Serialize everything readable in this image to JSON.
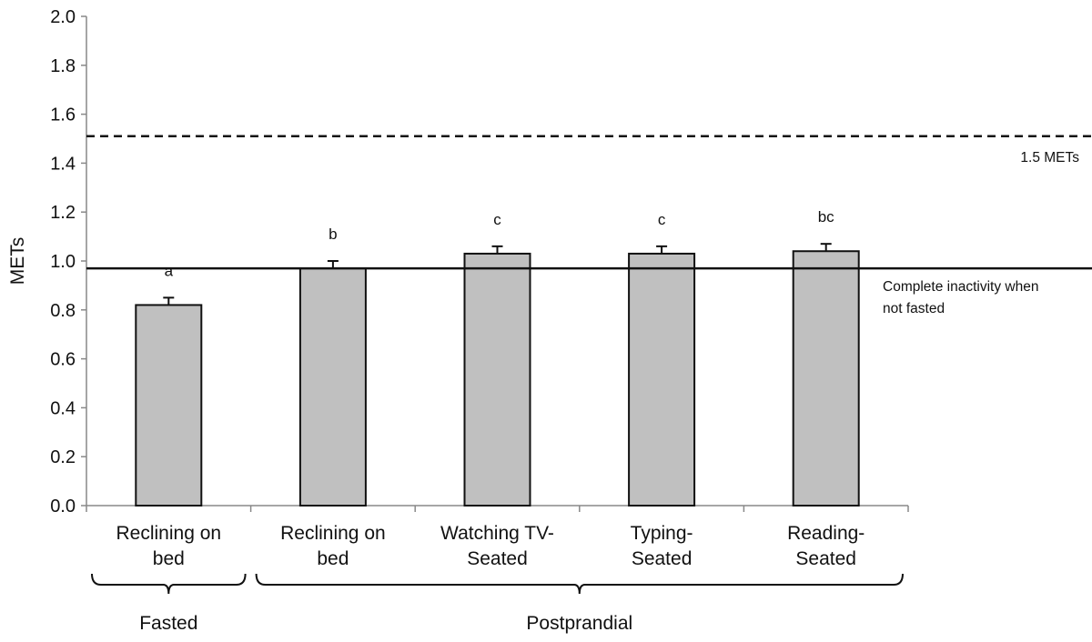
{
  "chart_data": {
    "type": "bar",
    "title": "",
    "xlabel": "",
    "ylabel": "METs",
    "ylim": [
      0,
      2.0
    ],
    "yticks": [
      "0.0",
      "0.2",
      "0.4",
      "0.6",
      "0.8",
      "1.0",
      "1.2",
      "1.4",
      "1.6",
      "1.8",
      "2.0"
    ],
    "categories": [
      [
        "Reclining on",
        "bed"
      ],
      [
        "Reclining on",
        "bed"
      ],
      [
        "Watching TV-",
        "Seated"
      ],
      [
        "Typing-",
        "Seated"
      ],
      [
        "Reading-",
        "Seated"
      ]
    ],
    "values": [
      0.82,
      0.97,
      1.03,
      1.03,
      1.04
    ],
    "errors": [
      0.03,
      0.03,
      0.03,
      0.03,
      0.03
    ],
    "significance": [
      "a",
      "b",
      "c",
      "c",
      "bc"
    ],
    "reference_lines": [
      {
        "value": 1.51,
        "style": "dashed",
        "label": [
          "1.5 METs"
        ]
      },
      {
        "value": 0.97,
        "style": "solid",
        "label": [
          "Complete inactivity when",
          "not fasted"
        ]
      }
    ],
    "groups": [
      {
        "label": "Fasted",
        "from": 0,
        "to": 0
      },
      {
        "label": "Postprandial",
        "from": 1,
        "to": 4
      }
    ],
    "colors": {
      "bar_fill": "#c0c0c0",
      "bar_stroke": "#111111",
      "line": "#111111",
      "axis": "#888888"
    },
    "grid": false,
    "legend": "none"
  }
}
